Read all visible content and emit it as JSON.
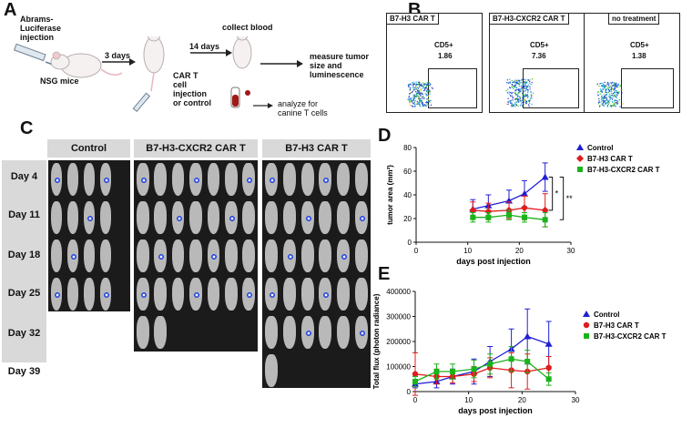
{
  "panel_letters": {
    "a": "A",
    "b": "B",
    "c": "C",
    "d": "D",
    "e": "E"
  },
  "schematic": {
    "injection_label": "Abrams-\nLuciferase\ninjection",
    "mice_label": "NSG mice",
    "wait1": "3 days",
    "wait2": "14 days",
    "cart_label": "CAR T\ncell\ninjection\nor control",
    "collect_label": "collect blood",
    "measure_label": "measure tumor\nsize and\nluminescence",
    "analyze_label": "analyze for\ncanine T cells"
  },
  "flow": [
    {
      "title": "B7-H3 CAR T",
      "gate_label": "CD5+",
      "value": "1.86"
    },
    {
      "title": "B7-H3-CXCR2 CAR T",
      "gate_label": "CD5+",
      "value": "7.36"
    },
    {
      "title": "no treatment",
      "gate_label": "CD5+",
      "value": "1.38"
    }
  ],
  "imaging": {
    "groups": [
      "Control",
      "B7-H3-CXCR2 CAR T",
      "B7-H3 CAR T"
    ],
    "days": [
      "Day 4",
      "Day 11",
      "Day 18",
      "Day 25",
      "Day 32",
      "Day 39"
    ]
  },
  "colors": {
    "control": "#1f1fd6",
    "b7h3": "#e01b1b",
    "cxcr2": "#1bb31b"
  },
  "chart_data": [
    {
      "type": "line",
      "title": "",
      "xlabel": "days post injection",
      "ylabel": "tumor area (mm²)",
      "xlim": [
        0,
        30
      ],
      "ylim": [
        0,
        80
      ],
      "xticks": [
        0,
        10,
        20,
        30
      ],
      "yticks": [
        0,
        20,
        40,
        60,
        80
      ],
      "legend_position": "top-right",
      "significance": [
        "*",
        "**"
      ],
      "series": [
        {
          "name": "Control",
          "x": [
            11,
            14,
            18,
            21,
            25
          ],
          "y": [
            28,
            31,
            35,
            41,
            55
          ],
          "err": [
            8,
            9,
            9,
            11,
            12
          ],
          "marker": "triangle"
        },
        {
          "name": "B7-H3 CAR T",
          "x": [
            11,
            14,
            18,
            21,
            25
          ],
          "y": [
            27,
            26,
            27,
            29,
            27
          ],
          "err": [
            7,
            7,
            7,
            10,
            14
          ],
          "marker": "diamond"
        },
        {
          "name": "B7-H3-CXCR2 CAR T",
          "x": [
            11,
            14,
            18,
            21,
            25
          ],
          "y": [
            21,
            21,
            23,
            21,
            19
          ],
          "err": [
            4,
            4,
            4,
            4,
            6
          ],
          "marker": "square"
        }
      ]
    },
    {
      "type": "line",
      "title": "",
      "xlabel": "days post injection",
      "ylabel": "Total flux (photon radiance)",
      "xlim": [
        0,
        30
      ],
      "ylim": [
        0,
        400000
      ],
      "xticks": [
        0,
        10,
        20,
        30
      ],
      "yticks": [
        0,
        100000,
        200000,
        300000,
        400000
      ],
      "legend_position": "right",
      "series": [
        {
          "name": "Control",
          "x": [
            0,
            4,
            7,
            11,
            14,
            18,
            21,
            25
          ],
          "y": [
            30000,
            40000,
            60000,
            80000,
            120000,
            170000,
            220000,
            190000
          ],
          "err": [
            15000,
            25000,
            30000,
            50000,
            60000,
            80000,
            110000,
            90000
          ],
          "marker": "triangle"
        },
        {
          "name": "B7-H3 CAR T",
          "x": [
            0,
            4,
            7,
            11,
            14,
            18,
            21,
            25
          ],
          "y": [
            70000,
            60000,
            60000,
            70000,
            95000,
            85000,
            80000,
            95000
          ],
          "err": [
            85000,
            30000,
            25000,
            30000,
            40000,
            70000,
            70000,
            45000
          ],
          "marker": "circle"
        },
        {
          "name": "B7-H3-CXCR2 CAR T",
          "x": [
            0,
            4,
            7,
            11,
            14,
            18,
            21,
            25
          ],
          "y": [
            40000,
            80000,
            80000,
            90000,
            110000,
            130000,
            120000,
            50000
          ],
          "err": [
            20000,
            30000,
            30000,
            35000,
            40000,
            50000,
            45000,
            25000
          ],
          "marker": "square"
        }
      ]
    }
  ]
}
